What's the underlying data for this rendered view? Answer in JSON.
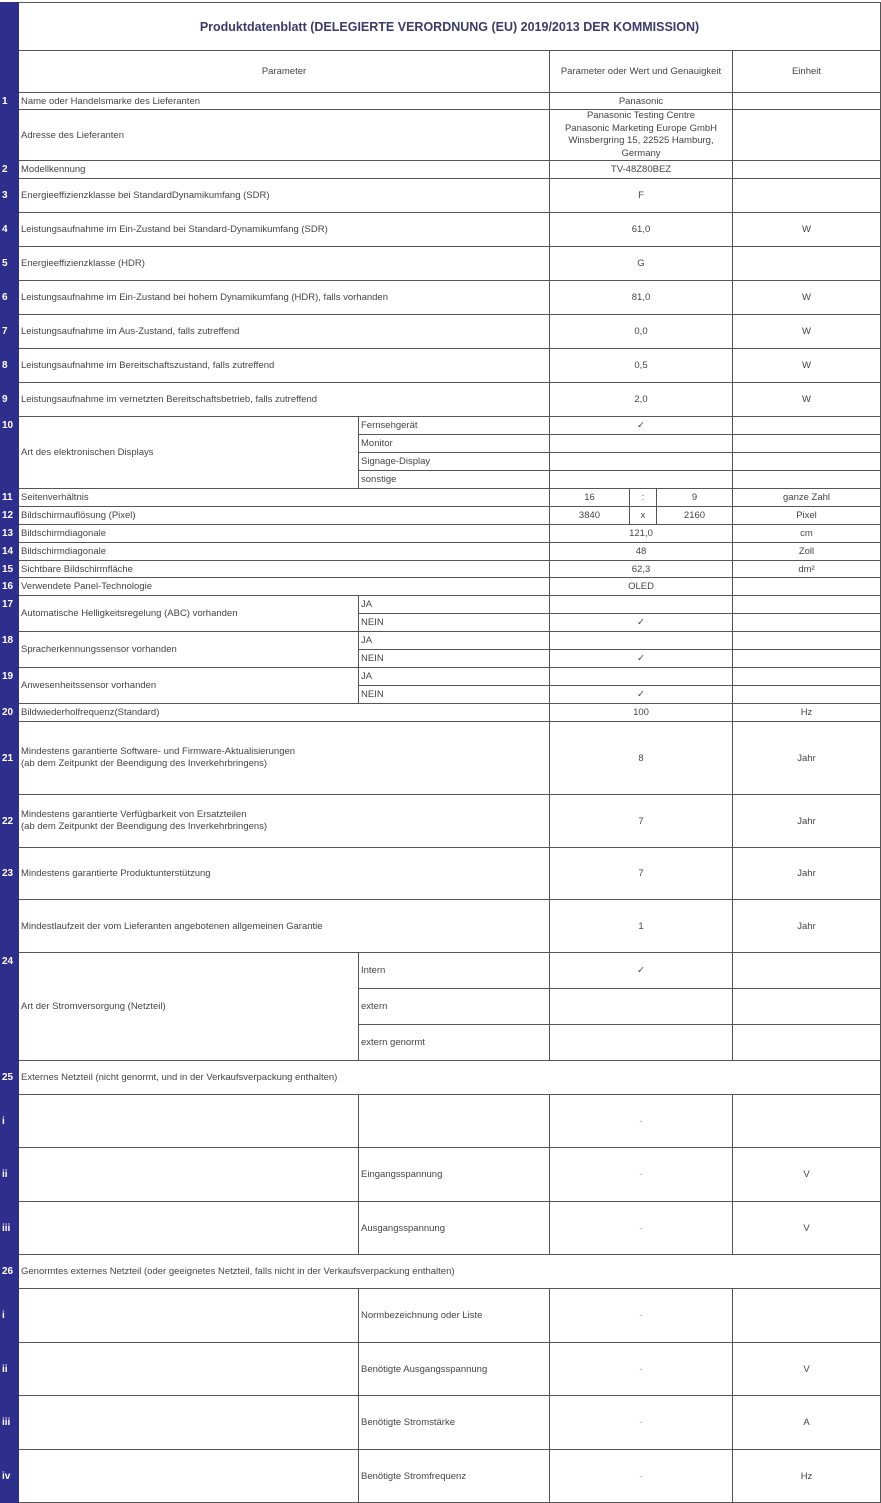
{
  "title": "Produktdatenblatt (DELEGIERTE VERORDNUNG (EU) 2019/2013 DER KOMMISSION)",
  "header": {
    "parameter": "Parameter",
    "value": "Parameter oder Wert und Genauigkeit",
    "unit": "Einheit"
  },
  "accent_color": "#2e2e8c",
  "rows": [
    {
      "num": "1",
      "label": "Name oder Handelsmarke des Lieferanten",
      "value": "Panasonic",
      "unit": ""
    },
    {
      "num": "",
      "label": "Adresse des Lieferanten",
      "value": "Panasonic Testing Centre\nPanasonic Marketing Europe GmbH\nWinsbergring 15, 22525 Hamburg,\nGermany",
      "unit": ""
    },
    {
      "num": "2",
      "label": "Modellkennung",
      "value": "TV-48Z80BEZ",
      "unit": ""
    },
    {
      "num": "3",
      "label": "Energieeffizienzklasse bei StandardDynamikumfang (SDR)",
      "value": "F",
      "unit": ""
    },
    {
      "num": "4",
      "label": "Leistungsaufnahme im Ein-Zustand bei Standard-Dynamikumfang (SDR)",
      "value": "61,0",
      "unit": "W"
    },
    {
      "num": "5",
      "label": "Energieeffizienzklasse (HDR)",
      "value": "G",
      "unit": ""
    },
    {
      "num": "6",
      "label": "Leistungsaufnahme im Ein-Zustand bei hohem Dynamikumfang (HDR), falls vorhanden",
      "value": "81,0",
      "unit": "W"
    },
    {
      "num": "7",
      "label": "Leistungsaufnahme im Aus-Zustand, falls zutreffend",
      "value": "0,0",
      "unit": "W"
    },
    {
      "num": "8",
      "label": "Leistungsaufnahme im Bereitschaftszustand, falls zutreffend",
      "value": "0,5",
      "unit": "W"
    },
    {
      "num": "9",
      "label": "Leistungsaufnahme im vernetzten Bereitschaftsbetrieb, falls zutreffend",
      "value": "2,0",
      "unit": "W"
    },
    {
      "num": "10",
      "label": "Art des elektronischen Displays",
      "options": [
        {
          "label": "Fernsehgerät",
          "value": "✓",
          "unit": ""
        },
        {
          "label": "Monitor",
          "value": "",
          "unit": ""
        },
        {
          "label": "Signage-Display",
          "value": "",
          "unit": ""
        },
        {
          "label": "sonstige",
          "value": "",
          "unit": ""
        }
      ]
    },
    {
      "num": "11",
      "label": "Seitenverhältnis",
      "v1": "16",
      "v2": ":",
      "v3": "9",
      "unit": "ganze Zahl"
    },
    {
      "num": "12",
      "label": "Bildschirmauflösung (Pixel)",
      "v1": "3840",
      "v2": "x",
      "v3": "2160",
      "unit": "Pixel"
    },
    {
      "num": "13",
      "label": "Bildschirmdiagonale",
      "value": "121,0",
      "unit": "cm"
    },
    {
      "num": "14",
      "label": "Bildschirmdiagonale",
      "value": "48",
      "unit": "Zoll"
    },
    {
      "num": "15",
      "label": "Sichtbare Bildschirmfläche",
      "value": "62,3",
      "unit": "dm²"
    },
    {
      "num": "16",
      "label": "Verwendete Panel-Technologie",
      "value": "OLED",
      "unit": ""
    },
    {
      "num": "17",
      "label": "Automatische Helligkeitsregelung (ABC) vorhanden",
      "options": [
        {
          "label": "JA",
          "value": "",
          "unit": ""
        },
        {
          "label": "NEIN",
          "value": "✓",
          "unit": ""
        }
      ]
    },
    {
      "num": "18",
      "label": "Spracherkennungssensor vorhanden",
      "options": [
        {
          "label": "JA",
          "value": "",
          "unit": ""
        },
        {
          "label": "NEIN",
          "value": "✓",
          "unit": ""
        }
      ]
    },
    {
      "num": "19",
      "label": "Anwesenheitssensor vorhanden",
      "options": [
        {
          "label": "JA",
          "value": "",
          "unit": ""
        },
        {
          "label": "NEIN",
          "value": "✓",
          "unit": ""
        }
      ]
    },
    {
      "num": "20",
      "label": "Bildwiederholfrequenz(Standard)",
      "value": "100",
      "unit": "Hz"
    },
    {
      "num": "21",
      "label": "Mindestens garantierte Software- und Firmware-Aktualisierungen\n(ab dem Zeitpunkt der Beendigung des Inverkehrbringens)",
      "value": "8",
      "unit": "Jahr"
    },
    {
      "num": "22",
      "label": "Mindestens garantierte Verfügbarkeit von Ersatzteilen\n(ab dem Zeitpunkt der Beendigung des Inverkehrbringens)",
      "value": "7",
      "unit": "Jahr"
    },
    {
      "num": "23",
      "label": "Mindestens garantierte Produktunterstützung",
      "value": "7",
      "unit": "Jahr"
    },
    {
      "num": "",
      "label": "Mindestlaufzeit der vom Lieferanten angebotenen allgemeinen Garantie",
      "value": "1",
      "unit": "Jahr"
    },
    {
      "num": "24",
      "label": "Art der Stromversorgung (Netzteil)",
      "options": [
        {
          "label": "Intern",
          "value": "✓",
          "unit": ""
        },
        {
          "label": "extern",
          "value": "",
          "unit": ""
        },
        {
          "label": "extern genormt",
          "value": "",
          "unit": ""
        }
      ]
    },
    {
      "num": "25",
      "label": "Externes Netzteil (nicht genormt, und in der Verkaufsverpackung enthalten)"
    },
    {
      "num": "i",
      "sub": "",
      "value": "-",
      "unit": ""
    },
    {
      "num": "ii",
      "sub": "Eingangsspannung",
      "value": "-",
      "unit": "V"
    },
    {
      "num": "iii",
      "sub": "Ausgangsspannung",
      "value": "-",
      "unit": "V"
    },
    {
      "num": "26",
      "label": "Genormtes externes Netzteil (oder geeignetes Netzteil, falls nicht in der Verkaufsverpackung enthalten)"
    },
    {
      "num": "i",
      "sub": "Normbezeichnung oder Liste",
      "value": "-",
      "unit": ""
    },
    {
      "num": "ii",
      "sub": "Benötigte Ausgangsspannung",
      "value": "-",
      "unit": "V"
    },
    {
      "num": "iii",
      "sub": "Benötigte Stromstärke",
      "value": "-",
      "unit": "A"
    },
    {
      "num": "iv",
      "sub": "Benötigte Stromfrequenz",
      "value": "-",
      "unit": "Hz"
    }
  ]
}
